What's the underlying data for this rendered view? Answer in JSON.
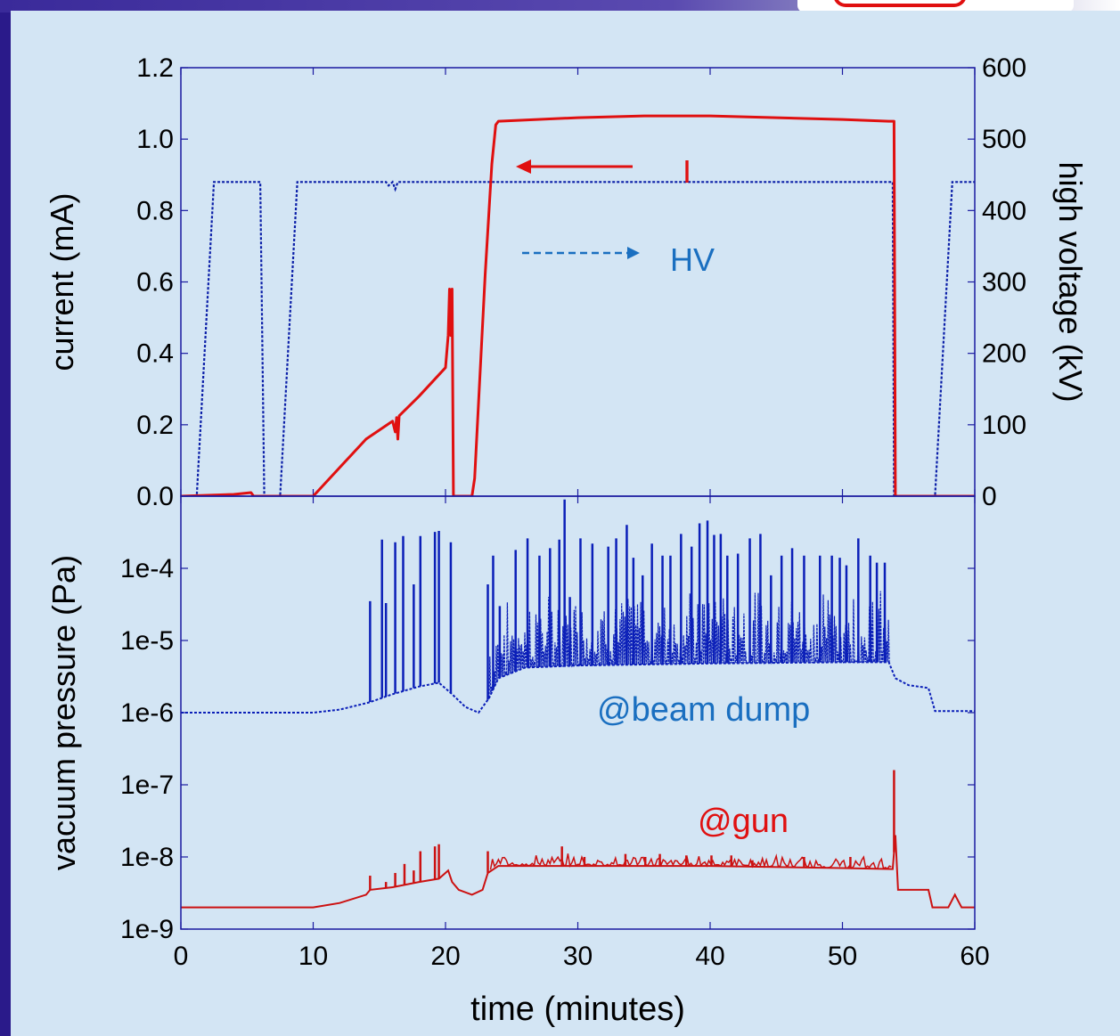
{
  "colors": {
    "frame": "#2a1a8a",
    "panel": "#d3e5f4",
    "current": "#e01010",
    "hv": "#0b1fa8",
    "beam_dump": "#0b1fb8",
    "gun": "#cc1111",
    "axis": "#1a1aa0",
    "annotation_blue": "#1a6fc0",
    "annotation_red": "#e01010"
  },
  "chart_data": [
    {
      "type": "line",
      "xlabel": "",
      "ylabel": "current (mA)",
      "y2label": "high voltage (kV)",
      "xlim": [
        0,
        60
      ],
      "ylim": [
        0,
        1.2
      ],
      "y2lim": [
        0,
        600
      ],
      "y_ticks": [
        "0.0",
        "0.2",
        "0.4",
        "0.6",
        "0.8",
        "1.0",
        "1.2"
      ],
      "y2_ticks": [
        "0",
        "100",
        "200",
        "300",
        "400",
        "500",
        "600"
      ],
      "series": [
        {
          "name": "I",
          "axis": "left",
          "style": "solid",
          "x": [
            0,
            4,
            5.3,
            5.5,
            10,
            10.5,
            12,
            14,
            16,
            16.2,
            16.3,
            16.4,
            16.5,
            18,
            19.5,
            20,
            20.2,
            20.3,
            20.4,
            20.5,
            20.6,
            22,
            22.2,
            23,
            23.5,
            23.8,
            24,
            30,
            35,
            40,
            45,
            50,
            53.5,
            53.9,
            53.95,
            54,
            60
          ],
          "y": [
            0,
            0.005,
            0.01,
            0,
            0,
            0.02,
            0.08,
            0.16,
            0.21,
            0.18,
            0.22,
            0.16,
            0.225,
            0.28,
            0.34,
            0.36,
            0.45,
            0.58,
            0.45,
            0.58,
            0,
            0,
            0.05,
            0.62,
            0.93,
            1.04,
            1.05,
            1.06,
            1.065,
            1.065,
            1.06,
            1.055,
            1.05,
            1.05,
            0.5,
            0,
            0
          ]
        },
        {
          "name": "HV",
          "axis": "right",
          "style": "dashed",
          "x": [
            0,
            1.2,
            2.5,
            6,
            6.3,
            7.5,
            8.8,
            15.5,
            15.7,
            16,
            16.2,
            16.4,
            17,
            53.8,
            53.9,
            57,
            58.3,
            60
          ],
          "y": [
            0,
            0,
            440,
            440,
            0,
            0,
            440,
            440,
            435,
            440,
            430,
            440,
            440,
            440,
            0,
            0,
            440,
            440
          ]
        }
      ],
      "annotations": [
        {
          "text": "I",
          "arrow": "left"
        },
        {
          "text": "HV",
          "arrow": "right"
        }
      ]
    },
    {
      "type": "line",
      "xlabel": "time (minutes)",
      "ylabel": "vacuum pressure (Pa)",
      "yscale": "log",
      "xlim": [
        0,
        60
      ],
      "ylim": [
        1e-09,
        0.001
      ],
      "y_ticks": [
        "1e-9",
        "1e-8",
        "1e-7",
        "1e-6",
        "1e-5",
        "1e-4"
      ],
      "x_ticks": [
        "0",
        "10",
        "20",
        "30",
        "40",
        "50",
        "60"
      ],
      "series": [
        {
          "name": "@beam dump",
          "style": "dashed",
          "baseline": {
            "x": [
              0,
              5,
              10,
              12,
              14,
              14.3,
              16,
              18,
              19.5,
              20.5,
              21.5,
              22.5,
              23.3,
              24,
              26,
              30,
              40,
              50,
              53.5,
              54,
              55,
              56.5,
              57,
              58,
              60
            ],
            "y": [
              1e-06,
              1e-06,
              1e-06,
              1.1e-06,
              1.35e-06,
              1.4e-06,
              1.8e-06,
              2.3e-06,
              2.6e-06,
              1.8e-06,
              1.2e-06,
              1e-06,
              1.6e-06,
              3e-06,
              4.2e-06,
              4.5e-06,
              4.8e-06,
              5e-06,
              5e-06,
              3e-06,
              2.4e-06,
              2.2e-06,
              1.05e-06,
              1.05e-06,
              1.05e-06
            ]
          },
          "spikes": {
            "x": [
              14.3,
              15.2,
              15.5,
              16.2,
              16.8,
              17.6,
              18.1,
              19.2,
              19.5,
              20.4,
              23.2,
              23.6,
              24.1,
              25.3,
              26.2,
              27.1,
              27.9,
              28.6,
              29.0,
              29.4,
              30.2,
              31.1,
              32.3,
              32.9,
              33.7,
              34.2,
              34.9,
              35.6,
              36.4,
              37.0,
              37.8,
              38.6,
              39.2,
              39.8,
              40.3,
              40.8,
              41.3,
              42.1,
              43.0,
              43.8,
              44.6,
              45.4,
              46.2,
              47.1,
              48.3,
              49.2,
              49.8,
              50.3,
              51.2,
              52.1,
              52.6,
              53.2
            ],
            "y": [
              3.5e-05,
              0.00025,
              3.3e-05,
              0.00023,
              0.00028,
              6e-05,
              0.00028,
              0.00032,
              0.00033,
              0.00023,
              6e-05,
              0.00015,
              3e-05,
              0.00018,
              0.00026,
              0.00015,
              0.00019,
              0.00025,
              0.0009,
              4e-05,
              0.00026,
              0.00022,
              0.0002,
              0.00026,
              0.0004,
              0.00014,
              8e-05,
              0.00022,
              0.00015,
              0.00015,
              0.0003,
              0.0002,
              0.00042,
              0.00046,
              0.00029,
              0.0003,
              0.00015,
              0.00016,
              0.00026,
              0.0003,
              8e-05,
              0.00015,
              0.00019,
              0.00015,
              0.00015,
              0.00015,
              0.00014,
              0.00011,
              0.00026,
              0.00015,
              0.00012,
              0.00012
            ]
          }
        },
        {
          "name": "@gun",
          "style": "solid",
          "baseline": {
            "x": [
              0,
              5,
              10,
              12,
              14,
              14.3,
              16,
              18,
              19.5,
              20.2,
              20.5,
              21,
              22,
              22.8,
              23.2,
              24,
              26,
              30,
              40,
              50,
              53.8,
              54,
              54.2,
              56.5,
              56.8,
              57.2,
              58,
              58.5,
              59,
              60
            ],
            "y": [
              2e-09,
              2e-09,
              2e-09,
              2.3e-09,
              3e-09,
              3.5e-09,
              3.8e-09,
              4.5e-09,
              5e-09,
              6.5e-09,
              4.5e-09,
              3.5e-09,
              3e-09,
              3.5e-09,
              6e-09,
              7.5e-09,
              7.5e-09,
              7.5e-09,
              7.5e-09,
              7e-09,
              6.8e-09,
              2e-08,
              3.5e-09,
              3.5e-09,
              2e-09,
              2e-09,
              2e-09,
              3e-09,
              2e-09,
              2e-09
            ]
          },
          "spikes": {
            "x": [
              14.3,
              15.5,
              16.2,
              16.9,
              17.6,
              18.1,
              19.2,
              19.5,
              23.2,
              28.8,
              30.5,
              33.6,
              35.1,
              36.2,
              38.2,
              40.1,
              41.6,
              43.2,
              47.1,
              50.6,
              53.9
            ],
            "y": [
              5.5e-09,
              4.5e-09,
              6e-09,
              8e-09,
              6.5e-09,
              1.2e-08,
              1.4e-08,
              1.5e-08,
              1.2e-08,
              1.4e-08,
              1e-08,
              1.1e-08,
              1e-08,
              1.1e-08,
              1.05e-08,
              1.05e-08,
              1.05e-08,
              9e-09,
              1e-08,
              1e-08,
              1.6e-07
            ]
          }
        }
      ]
    }
  ]
}
